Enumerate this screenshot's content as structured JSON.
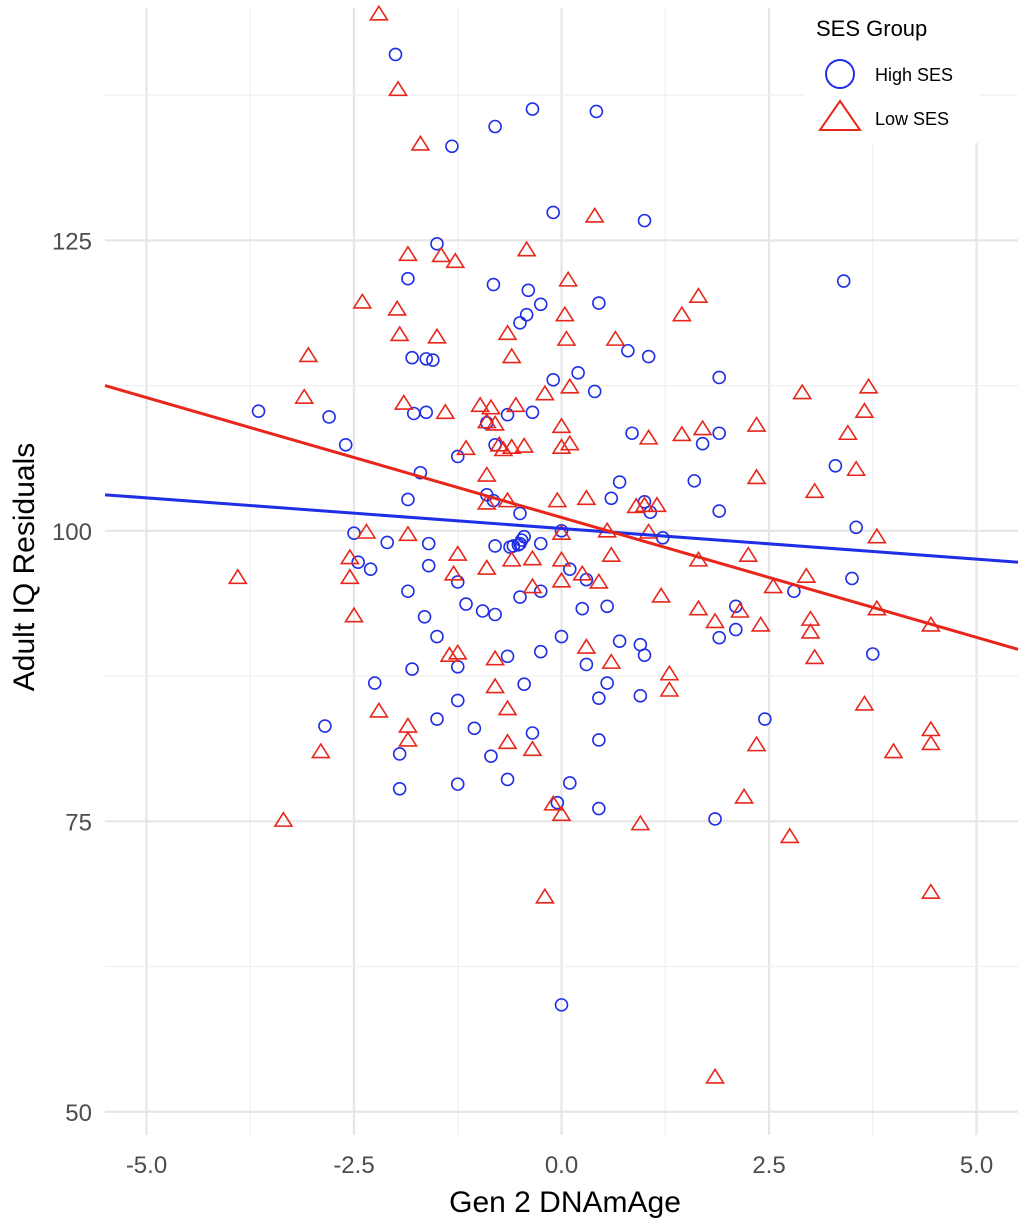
{
  "chart_data": {
    "type": "scatter",
    "xlabel": "Gen 2 DNAmAge",
    "ylabel": "Adult IQ Residuals",
    "xlim": [
      -5.5,
      5.5
    ],
    "ylim": [
      48,
      145
    ],
    "x_ticks": [
      -5.0,
      -2.5,
      0.0,
      2.5,
      5.0
    ],
    "x_tick_labels": [
      "-5.0",
      "-2.5",
      "0.0",
      "2.5",
      "5.0"
    ],
    "y_ticks": [
      50,
      75,
      100,
      125
    ],
    "y_tick_labels": [
      "50",
      "75",
      "100",
      "125"
    ],
    "grid": true,
    "legend": {
      "title": "SES Group",
      "position": "top-right"
    },
    "series": [
      {
        "name": "High SES",
        "marker": "circle",
        "color": "#1f2fe6",
        "trend": {
          "x": [
            -5.5,
            5.5
          ],
          "y": [
            103.1,
            97.3
          ]
        },
        "points": [
          [
            -2.0,
            141.0
          ],
          [
            -1.32,
            133.1
          ],
          [
            -0.8,
            134.8
          ],
          [
            -0.35,
            136.3
          ],
          [
            0.42,
            136.1
          ],
          [
            -0.1,
            127.4
          ],
          [
            1.0,
            126.7
          ],
          [
            -1.5,
            124.7
          ],
          [
            -1.85,
            121.7
          ],
          [
            -0.82,
            121.2
          ],
          [
            -0.4,
            120.7
          ],
          [
            -0.25,
            119.5
          ],
          [
            -0.42,
            118.6
          ],
          [
            -0.5,
            117.9
          ],
          [
            0.45,
            119.6
          ],
          [
            3.4,
            121.5
          ],
          [
            -1.8,
            114.9
          ],
          [
            -1.63,
            114.8
          ],
          [
            -1.55,
            114.7
          ],
          [
            0.2,
            113.6
          ],
          [
            1.05,
            115.0
          ],
          [
            0.8,
            115.5
          ],
          [
            1.9,
            113.2
          ],
          [
            -0.1,
            113.0
          ],
          [
            0.4,
            112.0
          ],
          [
            -3.65,
            110.3
          ],
          [
            -2.8,
            109.8
          ],
          [
            -1.78,
            110.1
          ],
          [
            -1.63,
            110.2
          ],
          [
            -0.9,
            109.3
          ],
          [
            -0.35,
            110.2
          ],
          [
            -0.65,
            110.0
          ],
          [
            -2.6,
            107.4
          ],
          [
            -1.25,
            106.4
          ],
          [
            -0.8,
            107.4
          ],
          [
            0.85,
            108.4
          ],
          [
            1.7,
            107.5
          ],
          [
            1.9,
            108.4
          ],
          [
            -1.7,
            105.0
          ],
          [
            0.7,
            104.2
          ],
          [
            1.6,
            104.3
          ],
          [
            3.3,
            105.6
          ],
          [
            -1.85,
            102.7
          ],
          [
            -0.9,
            103.1
          ],
          [
            -0.82,
            102.6
          ],
          [
            -0.5,
            101.5
          ],
          [
            0.6,
            102.8
          ],
          [
            1.0,
            102.5
          ],
          [
            1.07,
            101.6
          ],
          [
            1.9,
            101.7
          ],
          [
            -2.5,
            99.8
          ],
          [
            -2.1,
            99.0
          ],
          [
            -1.6,
            98.9
          ],
          [
            -0.8,
            98.7
          ],
          [
            -0.62,
            98.6
          ],
          [
            -0.58,
            98.7
          ],
          [
            -0.52,
            98.8
          ],
          [
            -0.5,
            98.9
          ],
          [
            -0.48,
            99.2
          ],
          [
            -0.45,
            99.5
          ],
          [
            -0.25,
            98.9
          ],
          [
            0.0,
            100.0
          ],
          [
            1.22,
            99.4
          ],
          [
            3.55,
            100.3
          ],
          [
            -2.45,
            97.3
          ],
          [
            -2.3,
            96.7
          ],
          [
            -1.6,
            97.0
          ],
          [
            -1.25,
            95.6
          ],
          [
            -1.85,
            94.8
          ],
          [
            -0.5,
            94.3
          ],
          [
            -0.25,
            94.8
          ],
          [
            0.1,
            96.7
          ],
          [
            0.3,
            95.8
          ],
          [
            2.8,
            94.8
          ],
          [
            3.5,
            95.9
          ],
          [
            -1.15,
            93.7
          ],
          [
            -1.65,
            92.6
          ],
          [
            -0.95,
            93.1
          ],
          [
            -0.8,
            92.8
          ],
          [
            0.25,
            93.3
          ],
          [
            0.55,
            93.5
          ],
          [
            2.1,
            93.5
          ],
          [
            -1.5,
            90.9
          ],
          [
            0.0,
            90.9
          ],
          [
            0.7,
            90.5
          ],
          [
            0.95,
            90.2
          ],
          [
            1.0,
            89.3
          ],
          [
            2.1,
            91.5
          ],
          [
            1.9,
            90.8
          ],
          [
            3.75,
            89.4
          ],
          [
            -1.8,
            88.1
          ],
          [
            -1.25,
            88.3
          ],
          [
            -0.65,
            89.2
          ],
          [
            -0.25,
            89.6
          ],
          [
            -2.25,
            86.9
          ],
          [
            -1.25,
            85.4
          ],
          [
            -0.45,
            86.8
          ],
          [
            0.45,
            85.6
          ],
          [
            0.55,
            86.9
          ],
          [
            0.95,
            85.8
          ],
          [
            0.3,
            88.5
          ],
          [
            -2.85,
            83.2
          ],
          [
            -1.5,
            83.8
          ],
          [
            -1.05,
            83.0
          ],
          [
            -0.35,
            82.6
          ],
          [
            0.45,
            82.0
          ],
          [
            2.45,
            83.8
          ],
          [
            -1.95,
            80.8
          ],
          [
            -0.85,
            80.6
          ],
          [
            -1.95,
            77.8
          ],
          [
            -1.25,
            78.2
          ],
          [
            -0.65,
            78.6
          ],
          [
            0.1,
            78.3
          ],
          [
            -0.05,
            76.6
          ],
          [
            0.45,
            76.1
          ],
          [
            1.85,
            75.2
          ],
          [
            0.0,
            59.2
          ]
        ]
      },
      {
        "name": "Low SES",
        "marker": "triangle",
        "color": "#e8261b",
        "trend": {
          "x": [
            -5.5,
            5.5
          ],
          "y": [
            112.5,
            89.8
          ]
        },
        "points": [
          [
            -2.2,
            144.5
          ],
          [
            -1.97,
            138.0
          ],
          [
            -1.7,
            133.3
          ],
          [
            -1.85,
            123.8
          ],
          [
            -1.45,
            123.7
          ],
          [
            -1.28,
            123.2
          ],
          [
            -0.42,
            124.2
          ],
          [
            0.4,
            127.1
          ],
          [
            0.08,
            121.6
          ],
          [
            -2.4,
            119.7
          ],
          [
            -1.98,
            119.1
          ],
          [
            1.65,
            120.2
          ],
          [
            1.45,
            118.6
          ],
          [
            -1.95,
            116.9
          ],
          [
            -1.5,
            116.7
          ],
          [
            -0.65,
            117.0
          ],
          [
            0.06,
            116.5
          ],
          [
            0.65,
            116.5
          ],
          [
            -3.05,
            115.1
          ],
          [
            -0.6,
            115.0
          ],
          [
            0.04,
            118.6
          ],
          [
            -3.1,
            111.5
          ],
          [
            -1.9,
            111.0
          ],
          [
            -1.4,
            110.2
          ],
          [
            -0.98,
            110.8
          ],
          [
            -0.85,
            110.6
          ],
          [
            -0.55,
            110.8
          ],
          [
            -0.2,
            111.8
          ],
          [
            0.1,
            112.4
          ],
          [
            -0.9,
            109.4
          ],
          [
            -0.8,
            109.2
          ],
          [
            0.0,
            109.0
          ],
          [
            1.05,
            108.0
          ],
          [
            1.45,
            108.3
          ],
          [
            1.7,
            108.8
          ],
          [
            2.35,
            109.1
          ],
          [
            2.9,
            111.9
          ],
          [
            3.65,
            110.3
          ],
          [
            3.7,
            112.4
          ],
          [
            3.45,
            108.4
          ],
          [
            -1.15,
            107.1
          ],
          [
            -0.75,
            107.4
          ],
          [
            -0.7,
            107.0
          ],
          [
            -0.6,
            107.2
          ],
          [
            -0.45,
            107.3
          ],
          [
            0.0,
            107.2
          ],
          [
            0.1,
            107.5
          ],
          [
            -0.9,
            104.8
          ],
          [
            2.35,
            104.6
          ],
          [
            3.55,
            105.3
          ],
          [
            -0.9,
            102.4
          ],
          [
            -0.65,
            102.6
          ],
          [
            -0.05,
            102.6
          ],
          [
            0.3,
            102.8
          ],
          [
            0.9,
            102.1
          ],
          [
            1.0,
            102.2
          ],
          [
            1.15,
            102.2
          ],
          [
            3.05,
            103.4
          ],
          [
            -2.35,
            99.9
          ],
          [
            -1.85,
            99.7
          ],
          [
            0.0,
            99.8
          ],
          [
            0.55,
            100.0
          ],
          [
            1.05,
            99.9
          ],
          [
            3.8,
            99.5
          ],
          [
            -2.55,
            97.7
          ],
          [
            -1.25,
            98.0
          ],
          [
            -0.9,
            96.8
          ],
          [
            -0.6,
            97.5
          ],
          [
            -0.35,
            97.6
          ],
          [
            0.0,
            97.5
          ],
          [
            0.6,
            97.9
          ],
          [
            1.65,
            97.5
          ],
          [
            2.25,
            97.9
          ],
          [
            -3.9,
            96.0
          ],
          [
            -2.55,
            96.0
          ],
          [
            -1.3,
            96.3
          ],
          [
            -0.35,
            95.2
          ],
          [
            0.0,
            95.7
          ],
          [
            0.25,
            96.3
          ],
          [
            0.45,
            95.6
          ],
          [
            1.2,
            94.4
          ],
          [
            2.55,
            95.2
          ],
          [
            2.95,
            96.1
          ],
          [
            3.8,
            93.3
          ],
          [
            -2.5,
            92.7
          ],
          [
            1.65,
            93.3
          ],
          [
            1.85,
            92.2
          ],
          [
            2.15,
            93.1
          ],
          [
            2.4,
            91.9
          ],
          [
            3.0,
            92.4
          ],
          [
            3.0,
            91.3
          ],
          [
            4.45,
            91.9
          ],
          [
            -1.35,
            89.3
          ],
          [
            -1.25,
            89.5
          ],
          [
            -0.8,
            89.0
          ],
          [
            0.3,
            90.0
          ],
          [
            0.6,
            88.7
          ],
          [
            3.05,
            89.1
          ],
          [
            1.3,
            87.7
          ],
          [
            -0.8,
            86.6
          ],
          [
            -0.65,
            84.7
          ],
          [
            -2.2,
            84.5
          ],
          [
            -1.85,
            83.2
          ],
          [
            -1.85,
            82.0
          ],
          [
            -0.65,
            81.8
          ],
          [
            -0.35,
            81.2
          ],
          [
            1.3,
            86.3
          ],
          [
            2.35,
            81.6
          ],
          [
            3.65,
            85.1
          ],
          [
            4.45,
            82.9
          ],
          [
            4.45,
            81.7
          ],
          [
            4.0,
            81.0
          ],
          [
            -2.9,
            81.0
          ],
          [
            -3.35,
            75.1
          ],
          [
            -0.1,
            76.5
          ],
          [
            0.0,
            75.6
          ],
          [
            0.95,
            74.8
          ],
          [
            2.2,
            77.1
          ],
          [
            2.75,
            73.7
          ],
          [
            -0.2,
            68.5
          ],
          [
            4.45,
            68.9
          ],
          [
            1.85,
            53.0
          ]
        ]
      }
    ]
  }
}
